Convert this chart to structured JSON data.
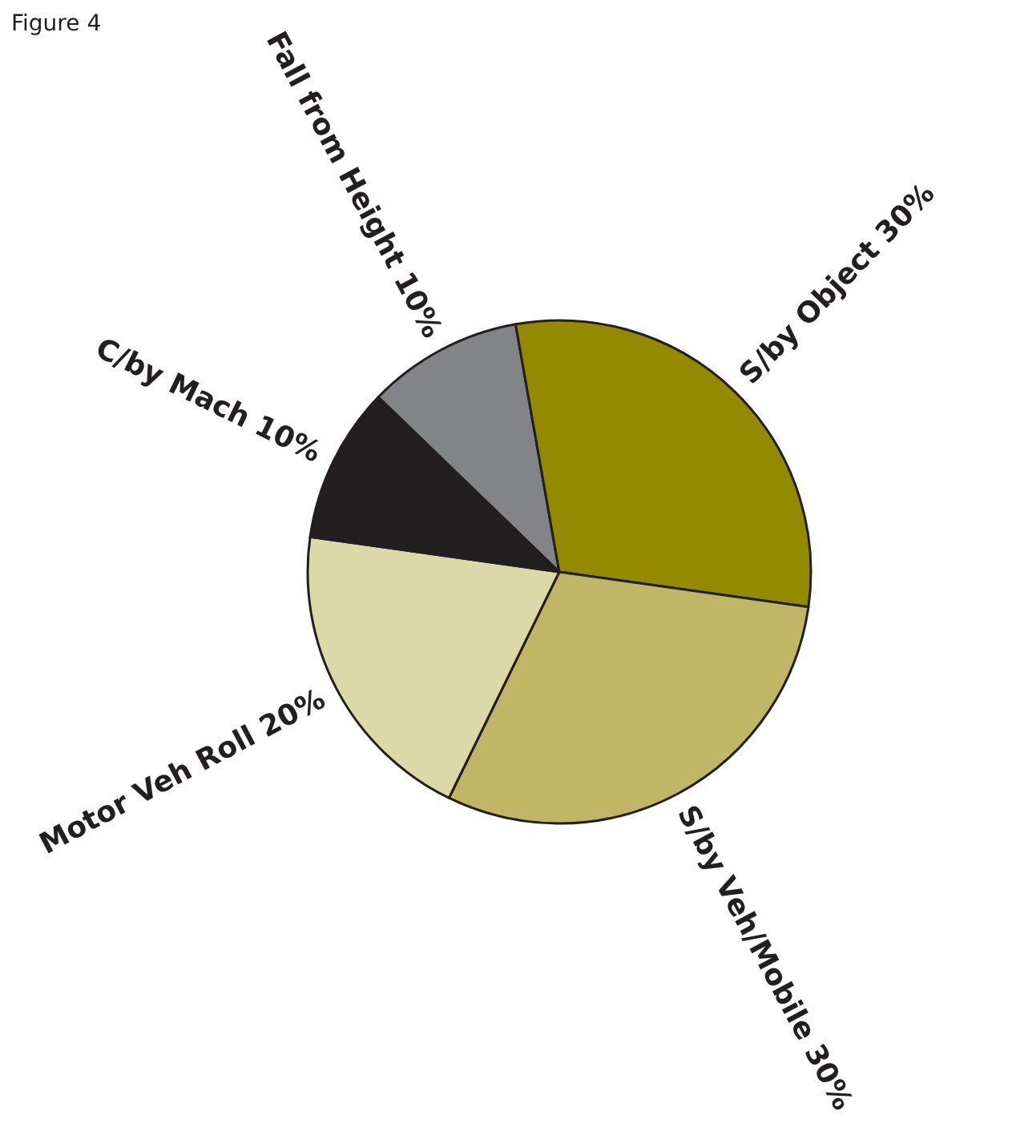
{
  "chart_data": {
    "type": "pie",
    "title": "Figure 4",
    "categories": [
      "Fall from Height",
      "S/by Object",
      "S/by Veh/Mobile",
      "Motor Veh Roll",
      "C/by Mach"
    ],
    "values": [
      10,
      30,
      30,
      20,
      10
    ],
    "value_labels": [
      "10%",
      "30%",
      "30%",
      "20%",
      "10%"
    ],
    "colors": [
      "#838487",
      "#948a00",
      "#c0b665",
      "#dcd8a7",
      "#231f20"
    ]
  }
}
